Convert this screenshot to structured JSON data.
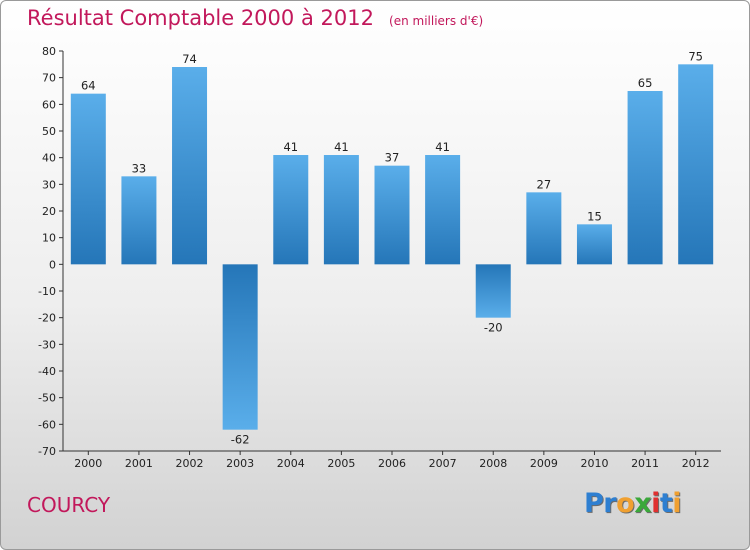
{
  "header": {
    "title": "Résultat Comptable 2000 à 2012",
    "subtitle": "(en milliers d'€)"
  },
  "footer": {
    "commune": "COURCY",
    "logo_letters": [
      {
        "ch": "P",
        "color": "#2e7fd1"
      },
      {
        "ch": "r",
        "color": "#2e7fd1"
      },
      {
        "ch": "o",
        "color": "#f0a030"
      },
      {
        "ch": "x",
        "color": "#3aa83a"
      },
      {
        "ch": "i",
        "color": "#e03030"
      },
      {
        "ch": "t",
        "color": "#2e7fd1"
      },
      {
        "ch": "i",
        "color": "#f0a030"
      }
    ]
  },
  "colors": {
    "bar_top": "#5aaeea",
    "bar_bottom": "#2576b8",
    "title": "#c2185b"
  },
  "chart_data": {
    "type": "bar",
    "title": "Résultat Comptable 2000 à 2012",
    "subtitle": "(en milliers d'€)",
    "categories": [
      "2000",
      "2001",
      "2002",
      "2003",
      "2004",
      "2005",
      "2006",
      "2007",
      "2008",
      "2009",
      "2010",
      "2011",
      "2012"
    ],
    "values": [
      64,
      33,
      74,
      -62,
      41,
      41,
      37,
      41,
      -20,
      27,
      15,
      65,
      75
    ],
    "ylim": [
      -70,
      80
    ],
    "yticks": [
      80,
      70,
      60,
      50,
      40,
      30,
      20,
      10,
      0,
      -10,
      -20,
      -30,
      -40,
      -50,
      -60,
      -70
    ],
    "grid": false,
    "legend": "none"
  }
}
